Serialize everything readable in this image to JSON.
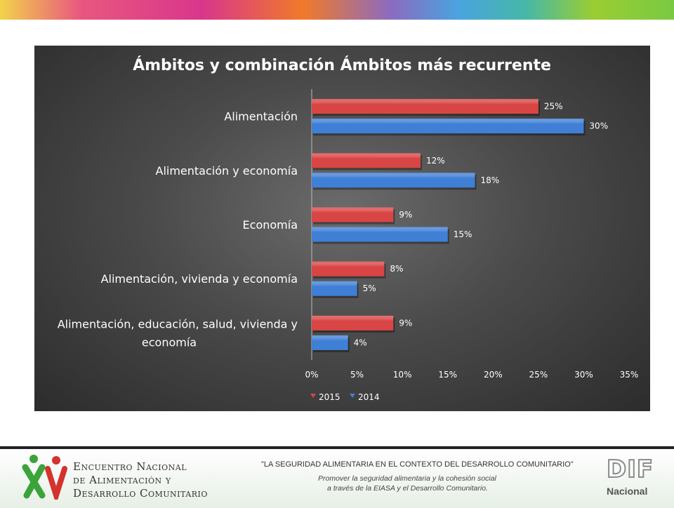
{
  "chart_data": {
    "type": "bar",
    "orientation": "horizontal",
    "title": "Ámbitos y combinación Ámbitos más recurrente",
    "categories": [
      "Alimentación",
      "Alimentación y economía",
      "Economía",
      "Alimentación, vivienda y economía",
      "Alimentación, educación, salud, vivienda y economía"
    ],
    "category_label_lines": [
      [
        "Alimentación"
      ],
      [
        "Alimentación y economía"
      ],
      [
        "Economía"
      ],
      [
        "Alimentación, vivienda y economía"
      ],
      [
        "Alimentación, educación, salud, vivienda y",
        "economía"
      ]
    ],
    "series": [
      {
        "name": "2015",
        "color": "#d94545",
        "values": [
          25,
          12,
          9,
          8,
          9
        ]
      },
      {
        "name": "2014",
        "color": "#3f7fd6",
        "values": [
          30,
          18,
          15,
          5,
          4
        ]
      }
    ],
    "xlim": [
      0,
      35
    ],
    "x_ticks": [
      0,
      5,
      10,
      15,
      20,
      25,
      30,
      35
    ],
    "tick_suffix": "%",
    "value_suffix": "%",
    "legend": "bottom",
    "grid": false
  },
  "footer": {
    "event_lines": [
      "Encuentro Nacional",
      "de Alimentación y",
      "Desarrollo Comunitario"
    ],
    "slogan": "\"LA SEGURIDAD ALIMENTARIA EN EL CONTEXTO DEL DESARROLLO COMUNITARIO\"",
    "subtitle_lines": [
      "Promover la seguridad alimentaria y la cohesión social",
      "a través de la EIASA y el Desarrollo Comunitario."
    ],
    "dif_logo_text": "DIF",
    "dif_sub": "Nacional"
  },
  "colors": {
    "stripe": [
      "#f3d34a",
      "#e8577f",
      "#d9368b",
      "#f07a2a",
      "#8b6bc0",
      "#4aa3df",
      "#46b8a8",
      "#9acd32",
      "#7ac943"
    ]
  }
}
